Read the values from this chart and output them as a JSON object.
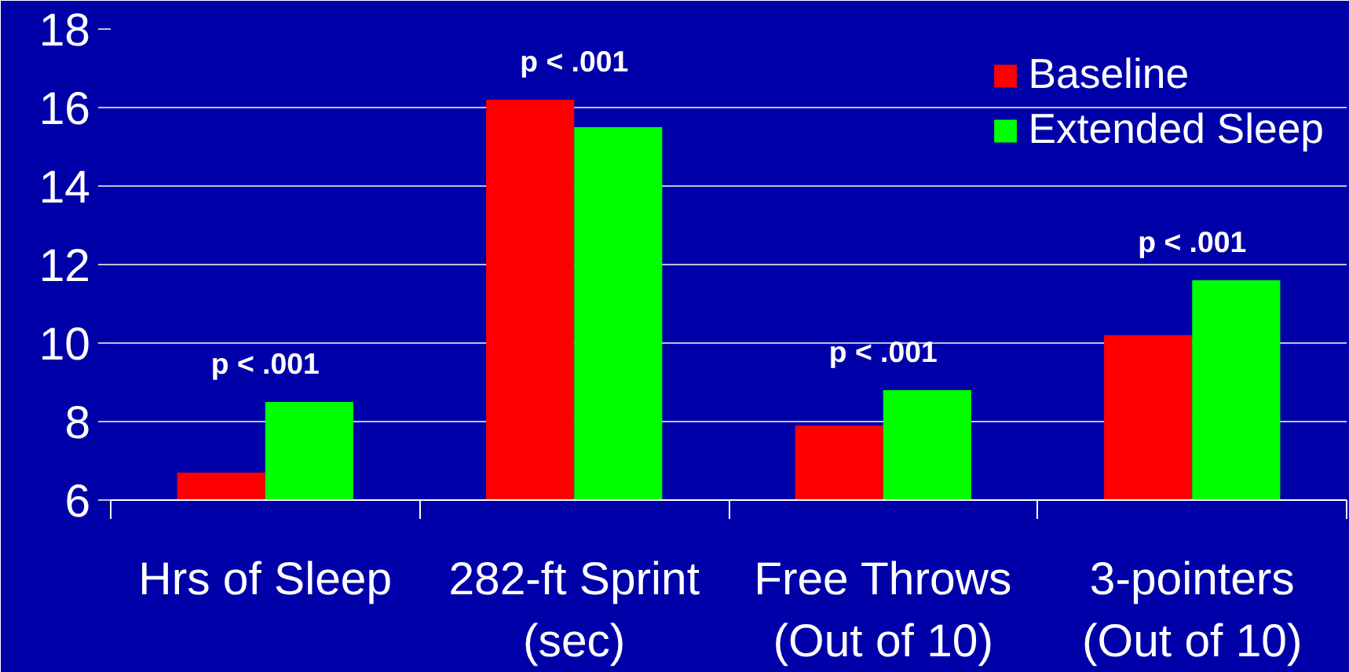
{
  "chart_data": {
    "type": "bar",
    "categories": [
      "Hrs of Sleep",
      "282-ft Sprint\n(sec)",
      "Free Throws\n(Out of 10)",
      "3-pointers\n(Out of 10)"
    ],
    "series": [
      {
        "name": "Baseline",
        "color": "#ff0000",
        "values": [
          6.7,
          16.2,
          7.9,
          10.2
        ]
      },
      {
        "name": "Extended Sleep",
        "color": "#00ff00",
        "values": [
          8.5,
          15.5,
          8.8,
          11.6
        ]
      }
    ],
    "ylim": [
      6,
      18
    ],
    "yticks": [
      6,
      8,
      10,
      12,
      14,
      16,
      18
    ],
    "grid": "y",
    "legend": "top right",
    "annotations": [
      {
        "text": "p < .001",
        "x": "Hrs of Sleep",
        "y": 8.5
      },
      {
        "text": "p < .001",
        "x": "282-ft Sprint\n(sec)",
        "y": 16.2
      },
      {
        "text": "p < .001",
        "x": "Free Throws\n(Out of 10)",
        "y": 8.8
      },
      {
        "text": "p < .001",
        "x": "3-pointers\n(Out of 10)",
        "y": 11.6
      }
    ]
  }
}
